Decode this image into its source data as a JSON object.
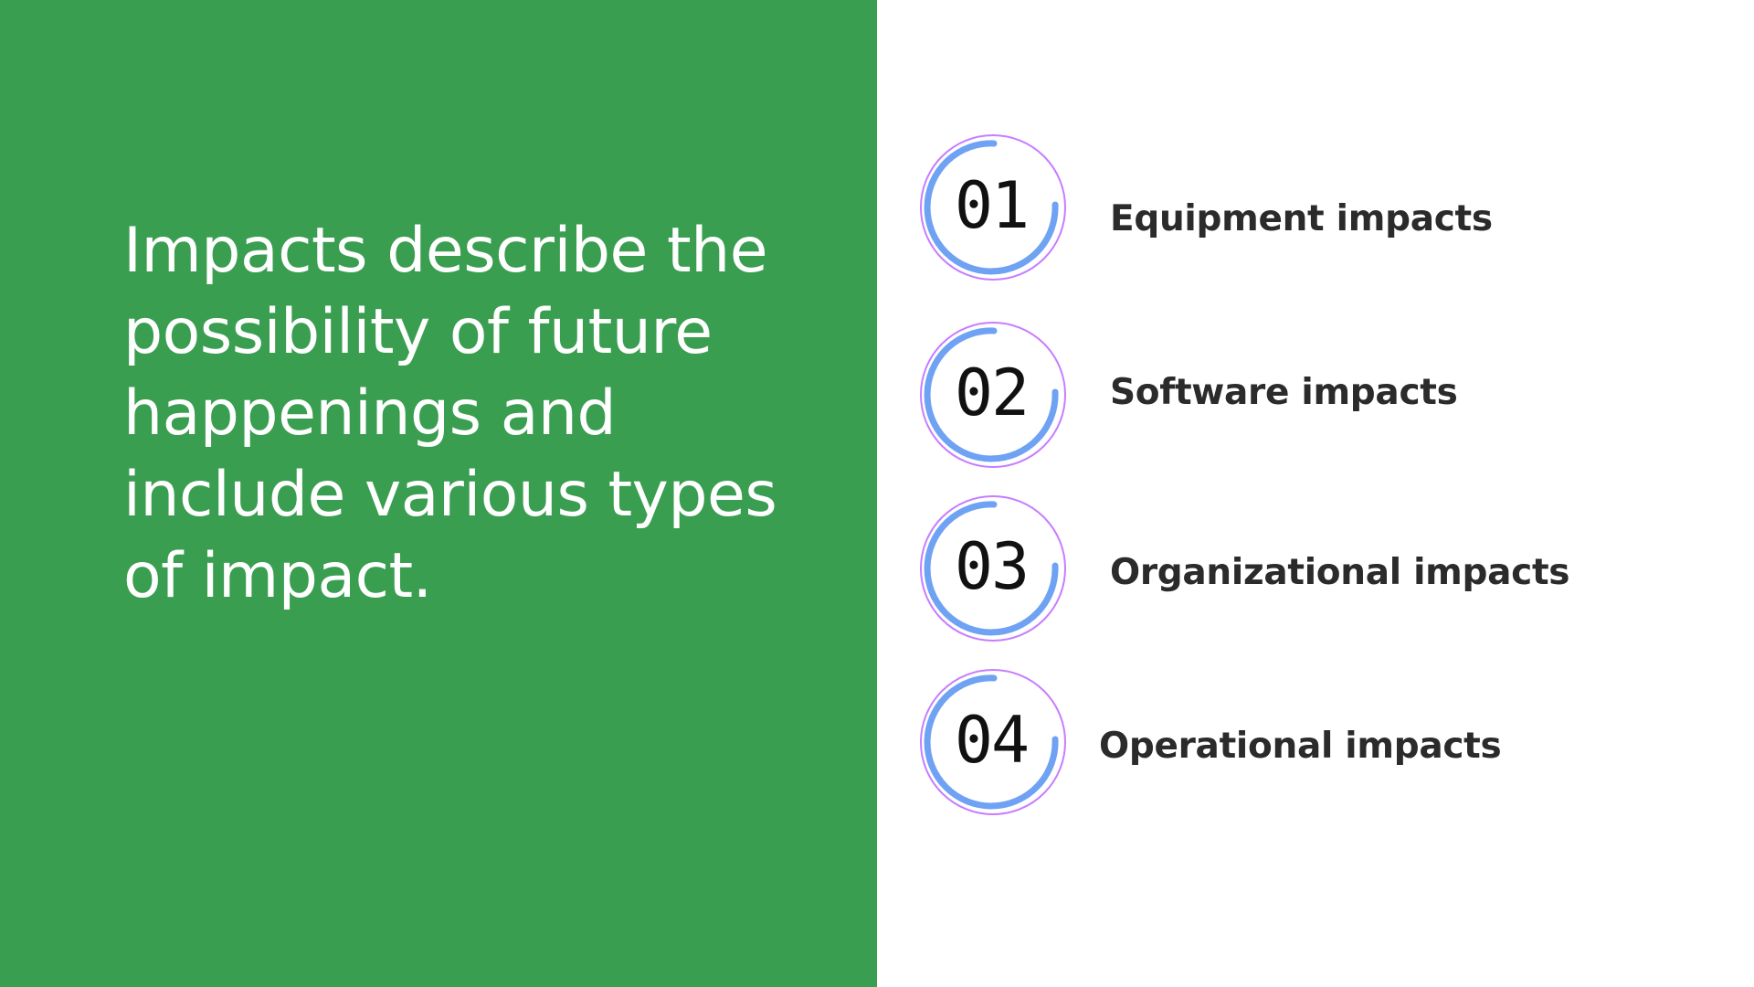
{
  "slide": {
    "headline": "Impacts describe the possibility of future happenings and include various types of impact.",
    "items": [
      {
        "number": "01",
        "label": "Equipment impacts"
      },
      {
        "number": "02",
        "label": "Software impacts"
      },
      {
        "number": "03",
        "label": "Organizational impacts"
      },
      {
        "number": "04",
        "label": "Operational impacts"
      }
    ]
  },
  "colors": {
    "panel_green": "#3a9e50",
    "ring_outline": "#c77dff",
    "arc_blue": "#6fa2f3",
    "label_text": "#2b2b2b"
  }
}
